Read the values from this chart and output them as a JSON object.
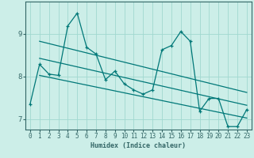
{
  "title": "",
  "xlabel": "Humidex (Indice chaleur)",
  "bg_color": "#cceee8",
  "line_color": "#007878",
  "grid_color": "#a0d8d0",
  "axis_color": "#336666",
  "tick_color": "#336666",
  "xlim": [
    -0.5,
    23.5
  ],
  "ylim": [
    6.75,
    9.75
  ],
  "xticks": [
    0,
    1,
    2,
    3,
    4,
    5,
    6,
    7,
    8,
    9,
    10,
    11,
    12,
    13,
    14,
    15,
    16,
    17,
    18,
    19,
    20,
    21,
    22,
    23
  ],
  "yticks": [
    7,
    8,
    9
  ],
  "data_x": [
    0,
    1,
    2,
    3,
    4,
    5,
    6,
    7,
    8,
    9,
    10,
    11,
    12,
    13,
    14,
    15,
    16,
    17,
    18,
    19,
    20,
    21,
    22,
    23
  ],
  "data_y": [
    7.35,
    8.28,
    8.05,
    8.02,
    9.18,
    9.48,
    8.68,
    8.52,
    7.92,
    8.12,
    7.82,
    7.68,
    7.58,
    7.68,
    8.62,
    8.72,
    9.05,
    8.82,
    7.18,
    7.48,
    7.48,
    6.82,
    6.82,
    7.22
  ],
  "upper_line_x": [
    1,
    23
  ],
  "upper_line_y": [
    8.82,
    7.62
  ],
  "lower_line_x": [
    1,
    23
  ],
  "lower_line_y": [
    8.02,
    7.02
  ],
  "mid_line_x": [
    1,
    23
  ],
  "mid_line_y": [
    8.42,
    7.32
  ],
  "xlabel_fontsize": 6.0,
  "tick_fontsize": 5.5,
  "ytick_fontsize": 6.5
}
